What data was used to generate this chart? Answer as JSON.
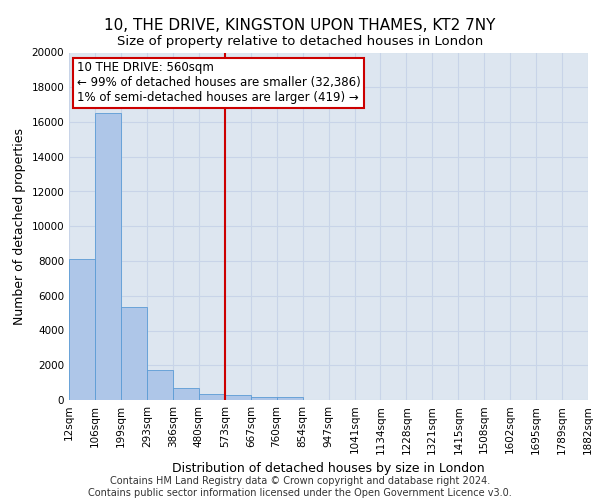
{
  "title1": "10, THE DRIVE, KINGSTON UPON THAMES, KT2 7NY",
  "title2": "Size of property relative to detached houses in London",
  "xlabel": "Distribution of detached houses by size in London",
  "ylabel": "Number of detached properties",
  "property_label": "10 THE DRIVE: 560sqm",
  "annotation_line1": "← 99% of detached houses are smaller (32,386)",
  "annotation_line2": "1% of semi-detached houses are larger (419) →",
  "bin_edges": [
    12,
    106,
    199,
    293,
    386,
    480,
    573,
    667,
    760,
    854,
    947,
    1041,
    1134,
    1228,
    1321,
    1415,
    1508,
    1602,
    1695,
    1789,
    1882
  ],
  "bin_counts": [
    8100,
    16500,
    5350,
    1750,
    700,
    330,
    270,
    200,
    160,
    0,
    0,
    0,
    0,
    0,
    0,
    0,
    0,
    0,
    0,
    0
  ],
  "bar_color": "#aec6e8",
  "bar_edge_color": "#5b9bd5",
  "vline_x": 573,
  "vline_color": "#cc0000",
  "ylim": [
    0,
    20000
  ],
  "yticks": [
    0,
    2000,
    4000,
    6000,
    8000,
    10000,
    12000,
    14000,
    16000,
    18000,
    20000
  ],
  "footer_line1": "Contains HM Land Registry data © Crown copyright and database right 2024.",
  "footer_line2": "Contains public sector information licensed under the Open Government Licence v3.0.",
  "title1_fontsize": 11,
  "title2_fontsize": 9.5,
  "xlabel_fontsize": 9,
  "ylabel_fontsize": 9,
  "tick_fontsize": 7.5,
  "annotation_fontsize": 8.5,
  "footer_fontsize": 7,
  "grid_color": "#c8d4e8",
  "bg_color": "#dde6f0"
}
